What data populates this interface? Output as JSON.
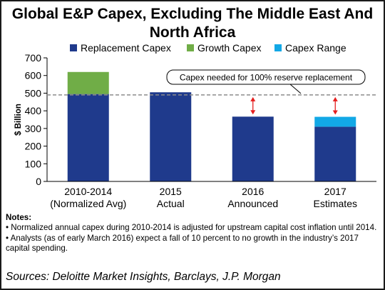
{
  "colors": {
    "replacement": "#1f3a8c",
    "growth": "#70ad47",
    "range": "#12a8e6",
    "threshold_line": "#8c8c8c",
    "arrow": "#e51e1e",
    "annotation_border": "#000000"
  },
  "chart_data": {
    "type": "bar",
    "stacked": true,
    "title": "Global E&P Capex, Excluding The Middle East And North Africa",
    "xlabel": "",
    "ylabel": "$ Billion",
    "ylim": [
      0,
      700
    ],
    "yticks": [
      "0",
      "100",
      "200",
      "300",
      "400",
      "500",
      "600",
      "700"
    ],
    "grid": false,
    "legend_position": "top",
    "categories": [
      [
        "2010-2014",
        "(Normalized Avg)"
      ],
      [
        "2015",
        "Actual"
      ],
      [
        "2016",
        "Announced"
      ],
      [
        "2017",
        "Estimates"
      ]
    ],
    "series": [
      {
        "name": "Replacement Capex",
        "color_key": "replacement",
        "values": [
          495,
          505,
          367,
          310
        ]
      },
      {
        "name": "Growth Capex",
        "color_key": "growth",
        "values": [
          125,
          0,
          0,
          0
        ]
      },
      {
        "name": "Capex Range",
        "color_key": "range",
        "values": [
          0,
          0,
          0,
          56
        ]
      }
    ],
    "reference_line": {
      "value": 490,
      "style": "dashed",
      "annotation": "Capex needed for 100% reserve replacement"
    },
    "gap_arrows": [
      {
        "category_index": 2,
        "from": 367,
        "to": 490
      },
      {
        "category_index": 3,
        "from": 366,
        "to": 490
      }
    ]
  },
  "notes": {
    "heading": "Notes:",
    "items": [
      "• Normalized annual capex during 2010-2014 is adjusted for upstream capital cost inflation until 2014.",
      "• Analysts (as of early March 2016) expect a fall of 10 percent to no growth in the industry’s 2017 capital spending."
    ]
  },
  "source": "Sources: Deloitte Market Insights, Barclays, J.P. Morgan"
}
